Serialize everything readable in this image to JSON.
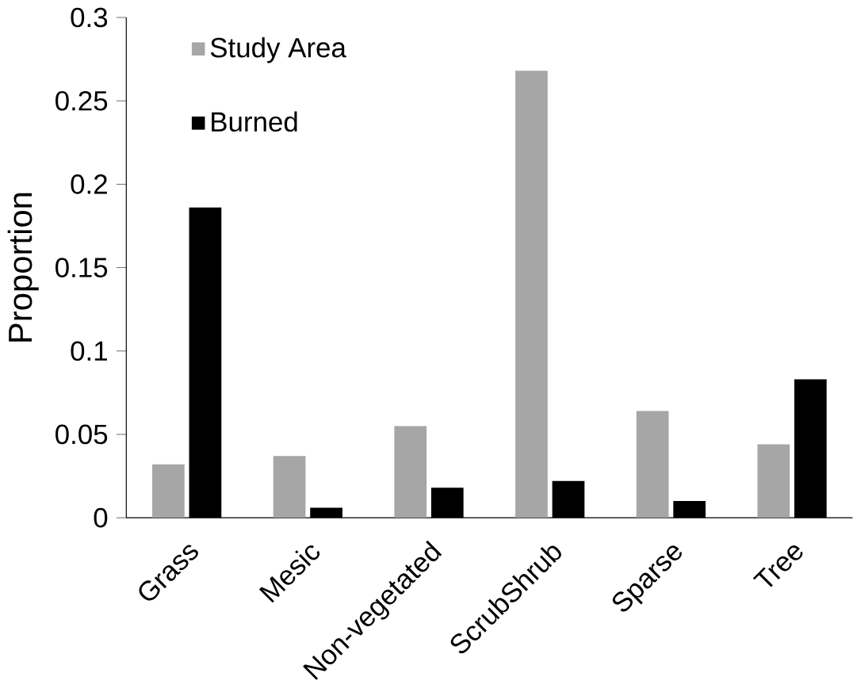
{
  "chart_data": {
    "type": "bar",
    "ylabel": "Proportion",
    "categories": [
      "Grass",
      "Mesic",
      "Non-vegetated",
      "ScrubShrub",
      "Sparse",
      "Tree"
    ],
    "series": [
      {
        "name": "Study Area",
        "color": "#a6a6a6",
        "values": [
          0.032,
          0.037,
          0.055,
          0.268,
          0.064,
          0.044
        ]
      },
      {
        "name": "Burned",
        "color": "#000000",
        "values": [
          0.186,
          0.006,
          0.018,
          0.022,
          0.01,
          0.083
        ]
      }
    ],
    "ylim": [
      0,
      0.3
    ],
    "yticks": [
      0,
      0.05,
      0.1,
      0.15,
      0.2,
      0.25,
      0.3
    ],
    "legend": "top left",
    "grid": false
  }
}
